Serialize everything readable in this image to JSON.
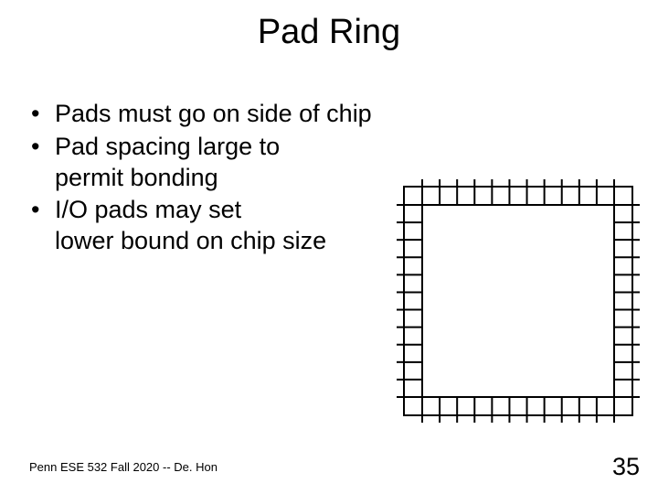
{
  "title": "Pad Ring",
  "bullets": [
    {
      "text": "Pads must go on side of chip"
    },
    {
      "text": "Pad spacing large to",
      "sub": "permit bonding"
    },
    {
      "text": "I/O pads may set",
      "sub": "lower bound on chip size"
    }
  ],
  "footer": "Penn ESE 532 Fall 2020 -- De. Hon",
  "page_number": "35",
  "padring_diagram": {
    "type": "pad-ring",
    "outer_size": 250,
    "pad_thickness": 20,
    "pads_per_side": 11,
    "tick_length": 8,
    "stroke": "#000000",
    "stroke_width": 2,
    "background": "#ffffff"
  }
}
